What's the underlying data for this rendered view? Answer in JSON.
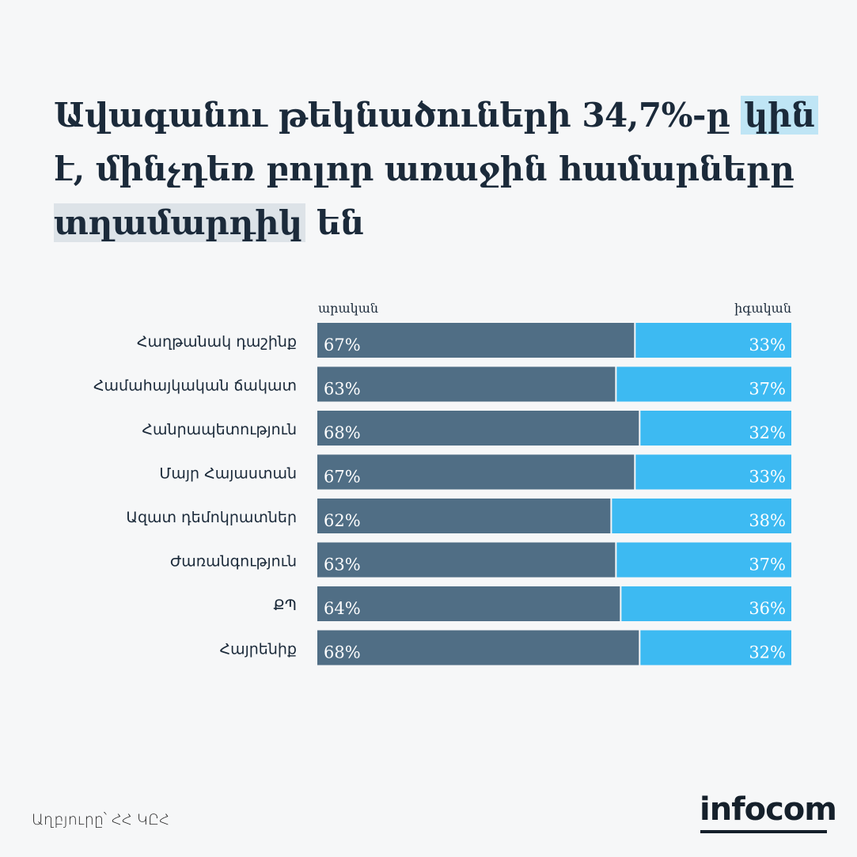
{
  "title": {
    "part1": "Ավագանու թեկնածուների 34,7%-ը ",
    "highlight1": "կին",
    "part2": " է, մինչդեռ բոլոր առաջին համարները ",
    "highlight2": "տղամարդիկ",
    "part3": " են"
  },
  "colors": {
    "male": "#506e85",
    "female": "#3dbaf2",
    "highlight1": "#bfe5f5",
    "highlight2": "#dde3e8"
  },
  "chart_data": {
    "type": "bar",
    "orientation": "horizontal",
    "stacked": true,
    "normalized": true,
    "categories": [
      "Հաղթանակ դաշինք",
      "Համահայկական ճակատ",
      "Հանրապետություն",
      "Մայր Հայաստան",
      "Ազատ դեմոկրատներ",
      "Ժառանգություն",
      "ՔՊ",
      "Հայրենիք"
    ],
    "series": [
      {
        "name": "արական",
        "values": [
          67,
          63,
          68,
          67,
          62,
          63,
          64,
          68
        ],
        "labels": [
          "67%",
          "63%",
          "68%",
          "67%",
          "62%",
          "63%",
          "64%",
          "68%"
        ]
      },
      {
        "name": "իգական",
        "values": [
          33,
          37,
          32,
          33,
          38,
          37,
          36,
          32
        ],
        "labels": [
          "33%",
          "37%",
          "32%",
          "33%",
          "38%",
          "37%",
          "36%",
          "32%"
        ]
      }
    ],
    "xlim": [
      0,
      100
    ],
    "grid": false,
    "legend": "top"
  },
  "source": "Աղբյուրը՝ ՀՀ ԿԸՀ",
  "logo": "infocom"
}
